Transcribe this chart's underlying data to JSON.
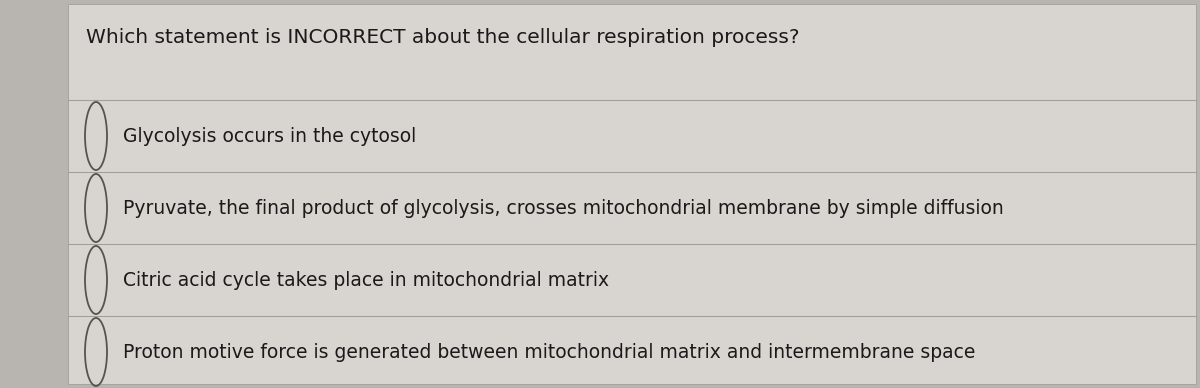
{
  "title": "Which statement is INCORRECT about the cellular respiration process?",
  "options": [
    "Glycolysis occurs in the cytosol",
    "Pyruvate, the final product of glycolysis, crosses mitochondrial membrane by simple diffusion",
    "Citric acid cycle takes place in mitochondrial matrix",
    "Proton motive force is generated between mitochondrial matrix and intermembrane space"
  ],
  "bg_color": "#b8b5b0",
  "card_color": "#d8d5d0",
  "title_color": "#1a1a1a",
  "option_color": "#1a1a1a",
  "line_color": "#a0a09a",
  "title_fontsize": 14.5,
  "option_fontsize": 13.5,
  "circle_color": "#555550"
}
